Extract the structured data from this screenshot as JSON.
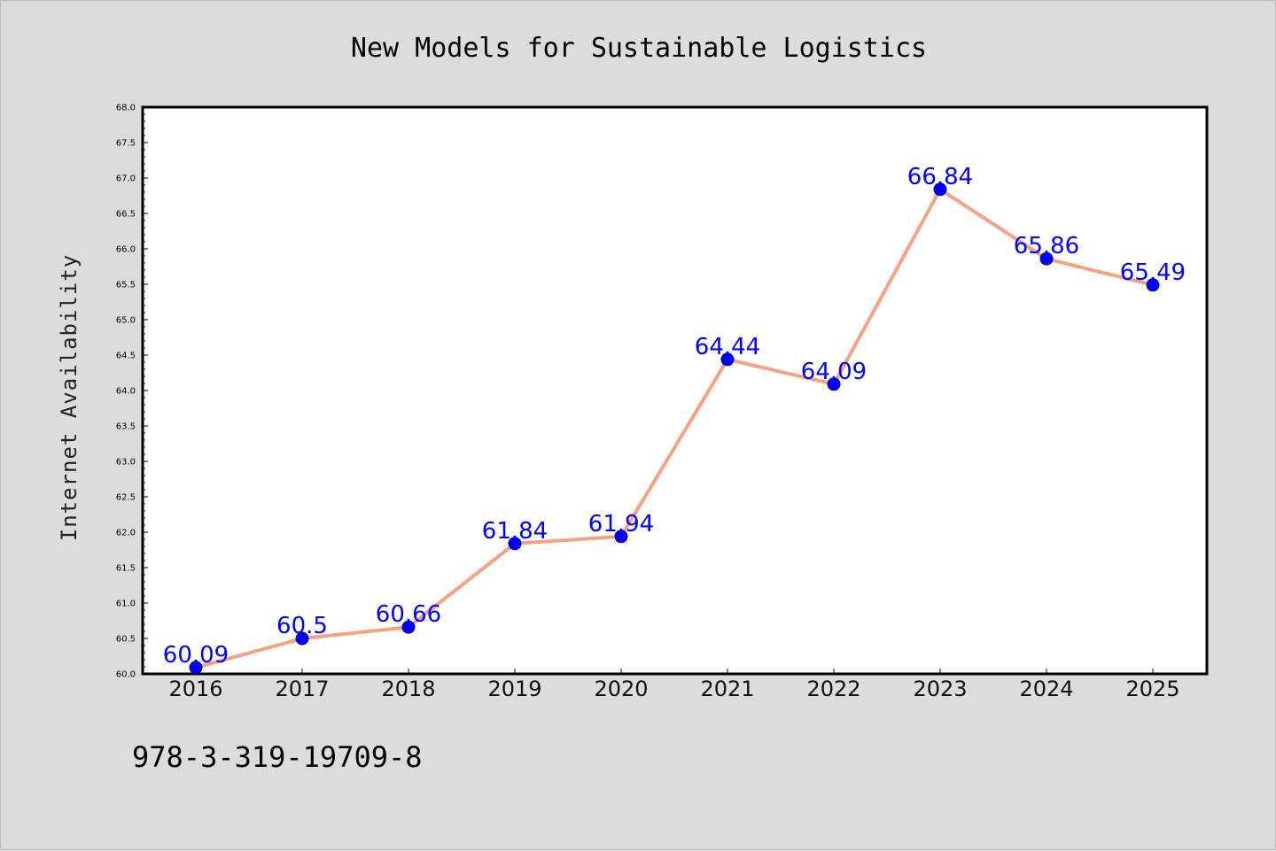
{
  "chart_data": {
    "type": "line",
    "title": "New Models for Sustainable Logistics",
    "xlabel": "",
    "ylabel": "Internet Availability",
    "categories": [
      "2016",
      "2017",
      "2018",
      "2019",
      "2020",
      "2021",
      "2022",
      "2023",
      "2024",
      "2025"
    ],
    "series": [
      {
        "values": [
          60.09,
          60.5,
          60.66,
          61.84,
          61.94,
          64.44,
          64.09,
          66.84,
          65.86,
          65.49
        ],
        "data_labels": [
          "60.09",
          "60.5",
          "60.66",
          "61.84",
          "61.94",
          "64.44",
          "64.09",
          "66.84",
          "65.86",
          "65.49"
        ]
      }
    ],
    "ylim": [
      60.0,
      68.0
    ],
    "yticks": [
      "60.0",
      "60.5",
      "61.0",
      "61.5",
      "62.0",
      "62.5",
      "63.0",
      "63.5",
      "64.0",
      "64.5",
      "65.0",
      "65.5",
      "66.0",
      "66.5",
      "67.0",
      "67.5",
      "68.0"
    ],
    "grid": false,
    "legend": "none",
    "colors": {
      "line": "#f4a284",
      "marker": "#0000ff",
      "marker_edge": "#00008b",
      "data_label": "#0000ff",
      "plot_background": "#ffffff",
      "figure_background": "#dcdcdc"
    }
  },
  "footer": {
    "isbn": "978-3-319-19709-8"
  }
}
